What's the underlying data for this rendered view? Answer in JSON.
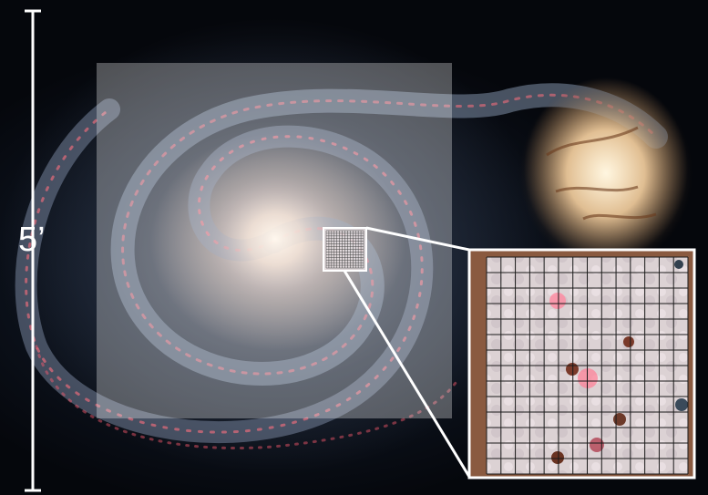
{
  "scale_bar": {
    "label": "5’"
  },
  "zoom_grid": {
    "columns": 14,
    "rows": 14
  },
  "colors": {
    "overlay": "#ffffff",
    "grid_lines": "#1a1a1a",
    "callout_lines": "#ffffff",
    "hii_regions": "#ff6f7e",
    "companion_core": "#fff1d6"
  }
}
